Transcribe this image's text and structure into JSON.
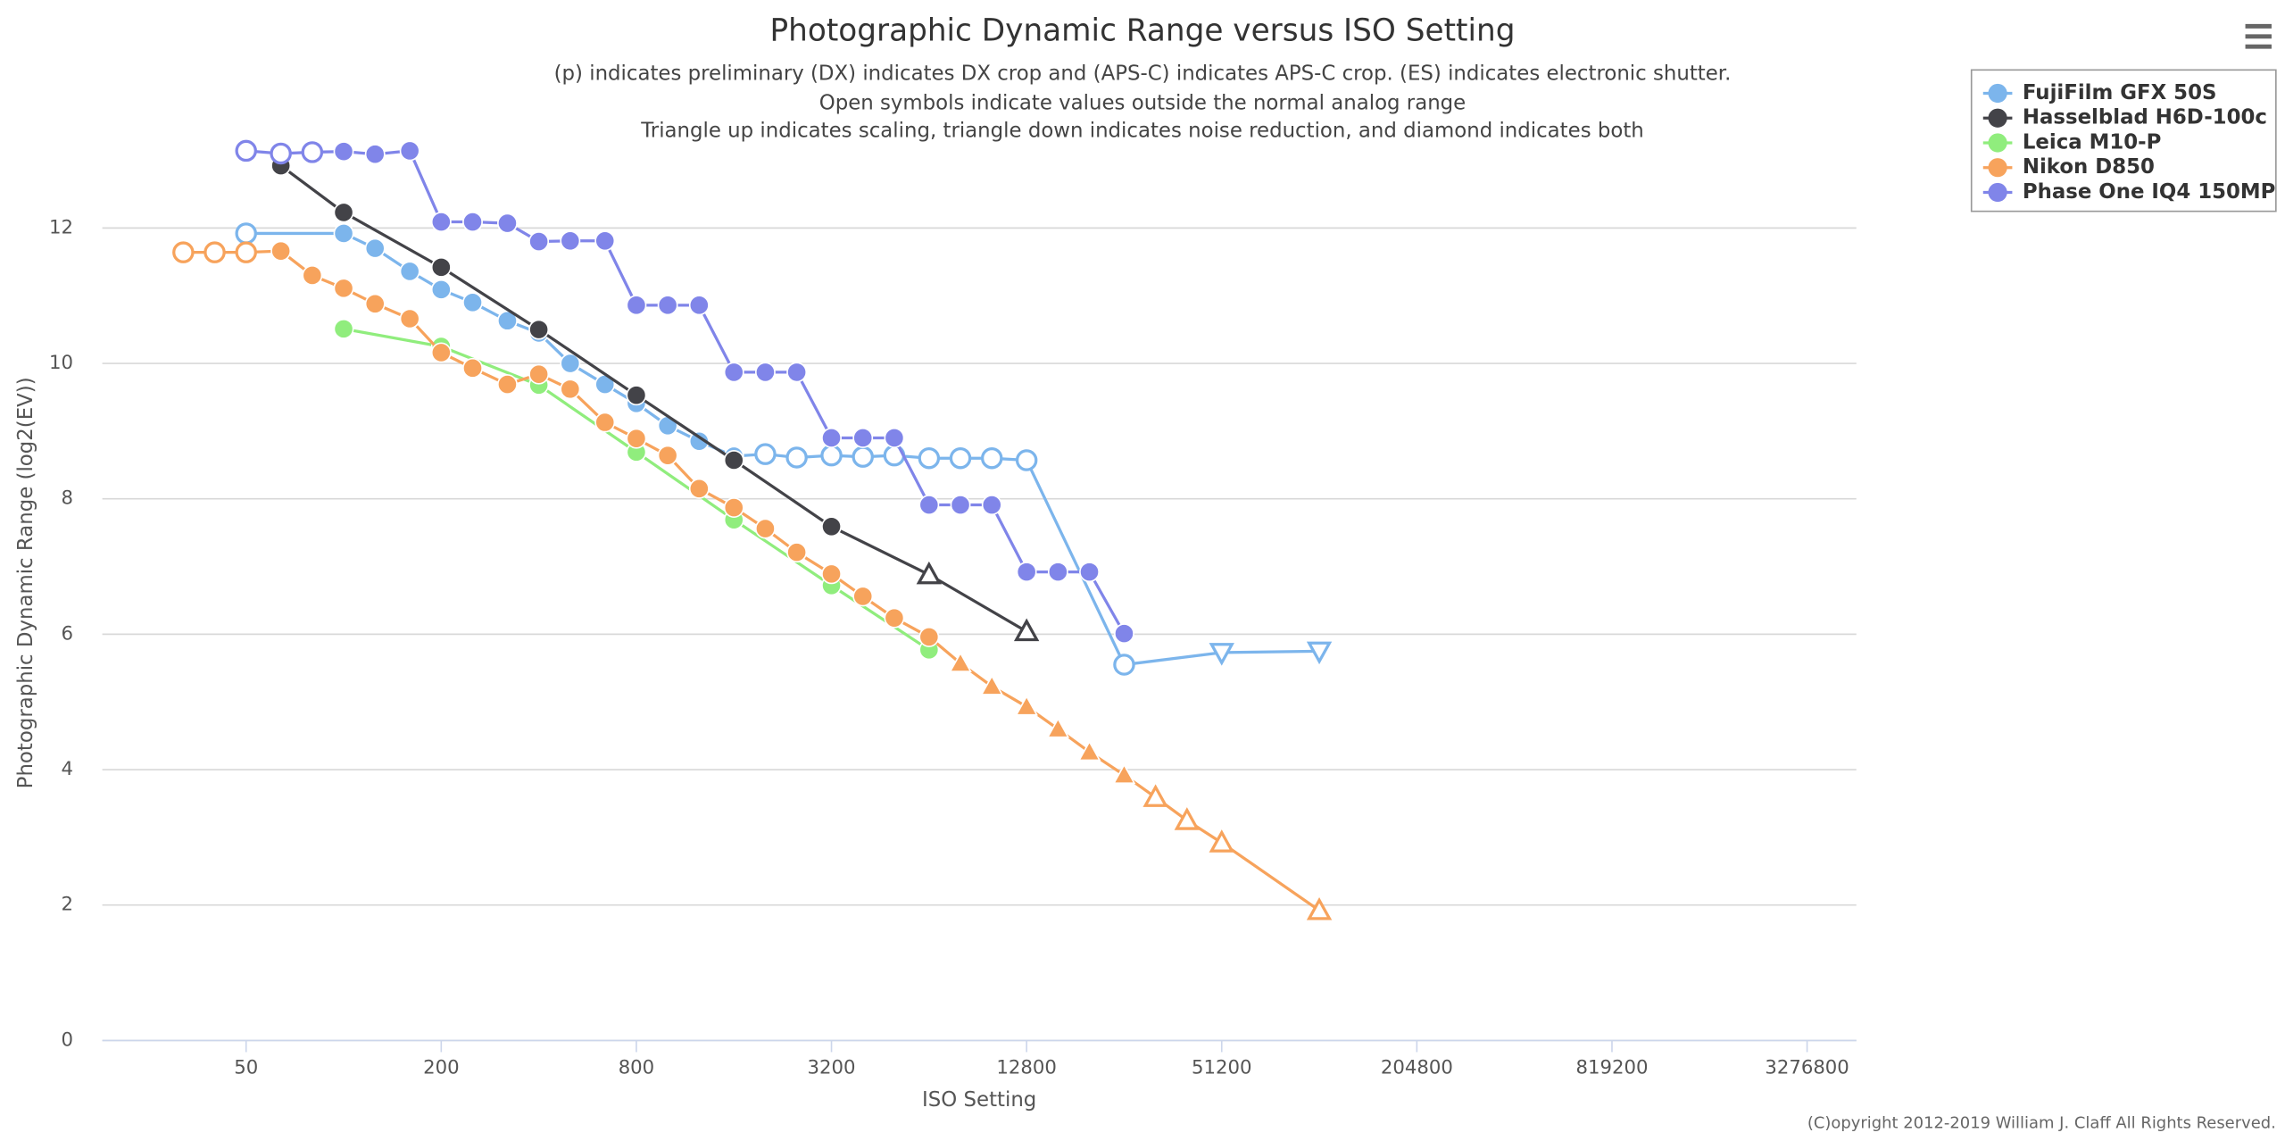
{
  "chart_data": {
    "type": "line",
    "title": "Photographic Dynamic Range versus ISO Setting",
    "subtitle": [
      "(p) indicates preliminary (DX) indicates DX crop and (APS-C) indicates APS-C crop. (ES) indicates electronic shutter.",
      "Open symbols indicate values outside the normal analog range",
      "Triangle up indicates scaling, triangle down indicates noise reduction, and diamond indicates both"
    ],
    "x_label": "ISO Setting",
    "y_label": "Photographic Dynamic Range (log2(EV))",
    "xscale": "log",
    "xlim": [
      18,
      4650000
    ],
    "xticks": [
      50,
      200,
      800,
      3200,
      12800,
      51200,
      204800,
      819200,
      3276800
    ],
    "ylim": [
      0,
      13
    ],
    "yticks": [
      0,
      2,
      4,
      6,
      8,
      10,
      12
    ],
    "grid": true,
    "legend": "top-right",
    "copyright": "(C)opyright 2012-2019 William J. Claff All Rights Reserved.",
    "series": [
      {
        "name": "FujiFilm GFX 50S",
        "color": "#7cb5ec",
        "x": [
          50,
          100,
          125,
          160,
          200,
          250,
          320,
          400,
          500,
          640,
          800,
          1000,
          1250,
          1600,
          2000,
          2500,
          3200,
          4000,
          5000,
          6400,
          8000,
          10000,
          12800,
          25600,
          51200,
          102400
        ],
        "values": [
          11.92,
          11.92,
          11.7,
          11.36,
          11.09,
          10.9,
          10.63,
          10.45,
          10.0,
          9.69,
          9.41,
          9.08,
          8.85,
          8.63,
          8.66,
          8.61,
          8.64,
          8.62,
          8.64,
          8.6,
          8.6,
          8.6,
          8.57,
          5.55,
          5.73,
          5.75
        ],
        "symbols": [
          "open-circle",
          "circle",
          "circle",
          "circle",
          "circle",
          "circle",
          "circle",
          "circle",
          "circle",
          "circle",
          "circle",
          "circle",
          "circle",
          "circle",
          "open-circle",
          "open-circle",
          "open-circle",
          "open-circle",
          "open-circle",
          "open-circle",
          "open-circle",
          "open-circle",
          "open-circle",
          "open-circle",
          "open-triangle-down",
          "open-triangle-down"
        ]
      },
      {
        "name": "Hasselblad H6D-100c",
        "color": "#434348",
        "x": [
          64,
          100,
          200,
          400,
          800,
          1600,
          3200,
          6400,
          12800
        ],
        "values": [
          12.92,
          12.23,
          11.42,
          10.5,
          9.53,
          8.57,
          7.59,
          6.88,
          6.04
        ],
        "symbols": [
          "circle",
          "circle",
          "circle",
          "circle",
          "circle",
          "circle",
          "circle",
          "open-triangle",
          "open-triangle"
        ]
      },
      {
        "name": "Leica M10-P",
        "color": "#90ed7d",
        "x": [
          100,
          200,
          400,
          800,
          1600,
          3200,
          6400
        ],
        "values": [
          10.51,
          10.25,
          9.68,
          8.69,
          7.69,
          6.72,
          5.77
        ],
        "symbols": [
          "circle",
          "circle",
          "circle",
          "circle",
          "circle",
          "circle",
          "circle"
        ]
      },
      {
        "name": "Nikon D850",
        "color": "#f7a35c",
        "x": [
          32,
          40,
          50,
          64,
          80,
          100,
          125,
          160,
          200,
          250,
          320,
          400,
          500,
          640,
          800,
          1000,
          1250,
          1600,
          2000,
          2500,
          3200,
          4000,
          5000,
          6400,
          8000,
          10000,
          12800,
          16000,
          20000,
          25600,
          32000,
          40000,
          51200,
          102400
        ],
        "values": [
          11.64,
          11.64,
          11.64,
          11.66,
          11.3,
          11.11,
          10.88,
          10.66,
          10.16,
          9.93,
          9.69,
          9.84,
          9.62,
          9.13,
          8.89,
          8.64,
          8.15,
          7.87,
          7.56,
          7.21,
          6.89,
          6.56,
          6.24,
          5.96,
          5.57,
          5.23,
          4.93,
          4.6,
          4.26,
          3.92,
          3.59,
          3.25,
          2.92,
          1.92
        ],
        "symbols": [
          "open-circle",
          "open-circle",
          "open-circle",
          "circle",
          "circle",
          "circle",
          "circle",
          "circle",
          "circle",
          "circle",
          "circle",
          "circle",
          "circle",
          "circle",
          "circle",
          "circle",
          "circle",
          "circle",
          "circle",
          "circle",
          "circle",
          "circle",
          "circle",
          "circle",
          "triangle",
          "triangle",
          "triangle",
          "triangle",
          "triangle",
          "triangle",
          "open-triangle",
          "open-triangle",
          "open-triangle",
          "open-triangle"
        ]
      },
      {
        "name": "Phase One IQ4 150MP",
        "color": "#8085e9",
        "x": [
          50,
          64,
          80,
          100,
          125,
          160,
          200,
          250,
          320,
          400,
          500,
          640,
          800,
          1000,
          1250,
          1600,
          2000,
          2500,
          3200,
          4000,
          5000,
          6400,
          8000,
          10000,
          12800,
          16000,
          20000,
          25600
        ],
        "values": [
          13.14,
          13.1,
          13.12,
          13.13,
          13.09,
          13.14,
          12.09,
          12.09,
          12.07,
          11.8,
          11.81,
          11.81,
          10.86,
          10.86,
          10.86,
          9.87,
          9.87,
          9.87,
          8.9,
          8.9,
          8.9,
          7.91,
          7.91,
          7.91,
          6.92,
          6.92,
          6.92,
          6.01
        ],
        "symbols": [
          "open-circle",
          "open-circle",
          "open-circle",
          "circle",
          "circle",
          "circle",
          "circle",
          "circle",
          "circle",
          "circle",
          "circle",
          "circle",
          "circle",
          "circle",
          "circle",
          "circle",
          "circle",
          "circle",
          "circle",
          "circle",
          "circle",
          "circle",
          "circle",
          "circle",
          "circle",
          "circle",
          "circle",
          "circle"
        ]
      }
    ]
  }
}
